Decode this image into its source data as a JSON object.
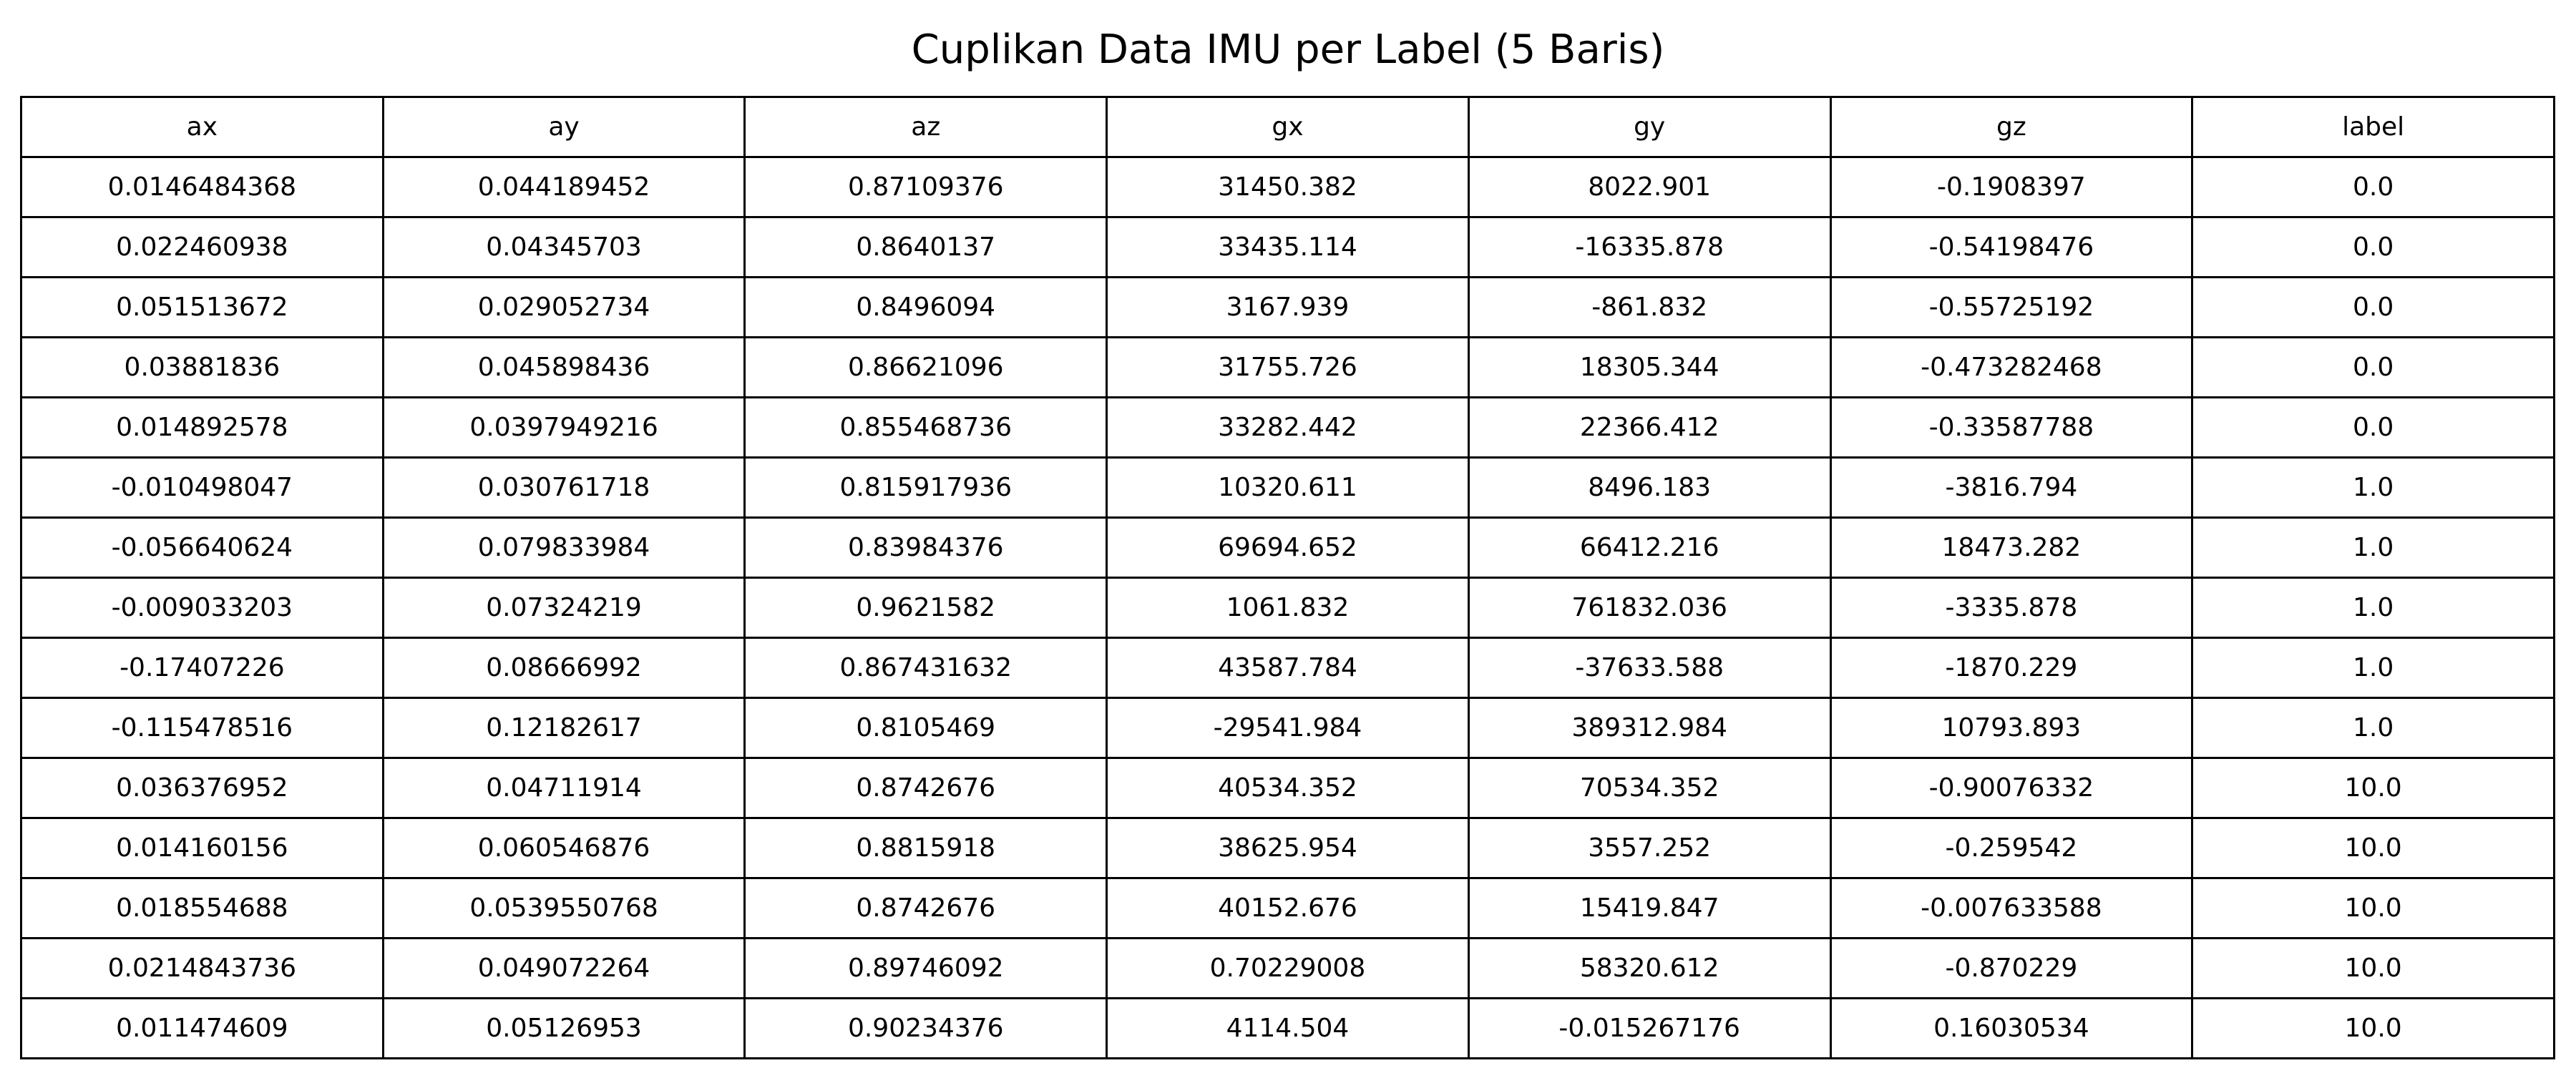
{
  "chart_data": {
    "type": "table",
    "title": "Cuplikan Data IMU per Label (5 Baris)",
    "columns": [
      "ax",
      "ay",
      "az",
      "gx",
      "gy",
      "gz",
      "label"
    ],
    "rows": [
      [
        "0.0146484368",
        "0.044189452",
        "0.87109376",
        "31450.382",
        "8022.901",
        "-0.1908397",
        "0.0"
      ],
      [
        "0.022460938",
        "0.04345703",
        "0.8640137",
        "33435.114",
        "-16335.878",
        "-0.54198476",
        "0.0"
      ],
      [
        "0.051513672",
        "0.029052734",
        "0.8496094",
        "3167.939",
        "-861.832",
        "-0.55725192",
        "0.0"
      ],
      [
        "0.03881836",
        "0.045898436",
        "0.86621096",
        "31755.726",
        "18305.344",
        "-0.473282468",
        "0.0"
      ],
      [
        "0.014892578",
        "0.0397949216",
        "0.855468736",
        "33282.442",
        "22366.412",
        "-0.33587788",
        "0.0"
      ],
      [
        "-0.010498047",
        "0.030761718",
        "0.815917936",
        "10320.611",
        "8496.183",
        "-3816.794",
        "1.0"
      ],
      [
        "-0.056640624",
        "0.079833984",
        "0.83984376",
        "69694.652",
        "66412.216",
        "18473.282",
        "1.0"
      ],
      [
        "-0.009033203",
        "0.07324219",
        "0.9621582",
        "1061.832",
        "761832.036",
        "-3335.878",
        "1.0"
      ],
      [
        "-0.17407226",
        "0.08666992",
        "0.867431632",
        "43587.784",
        "-37633.588",
        "-1870.229",
        "1.0"
      ],
      [
        "-0.115478516",
        "0.12182617",
        "0.8105469",
        "-29541.984",
        "389312.984",
        "10793.893",
        "1.0"
      ],
      [
        "0.036376952",
        "0.04711914",
        "0.8742676",
        "40534.352",
        "70534.352",
        "-0.90076332",
        "10.0"
      ],
      [
        "0.014160156",
        "0.060546876",
        "0.8815918",
        "38625.954",
        "3557.252",
        "-0.259542",
        "10.0"
      ],
      [
        "0.018554688",
        "0.0539550768",
        "0.8742676",
        "40152.676",
        "15419.847",
        "-0.007633588",
        "10.0"
      ],
      [
        "0.0214843736",
        "0.049072264",
        "0.89746092",
        "0.70229008",
        "58320.612",
        "-0.870229",
        "10.0"
      ],
      [
        "0.011474609",
        "0.05126953",
        "0.90234376",
        "4114.504",
        "-0.015267176",
        "0.16030534",
        "10.0"
      ]
    ]
  }
}
